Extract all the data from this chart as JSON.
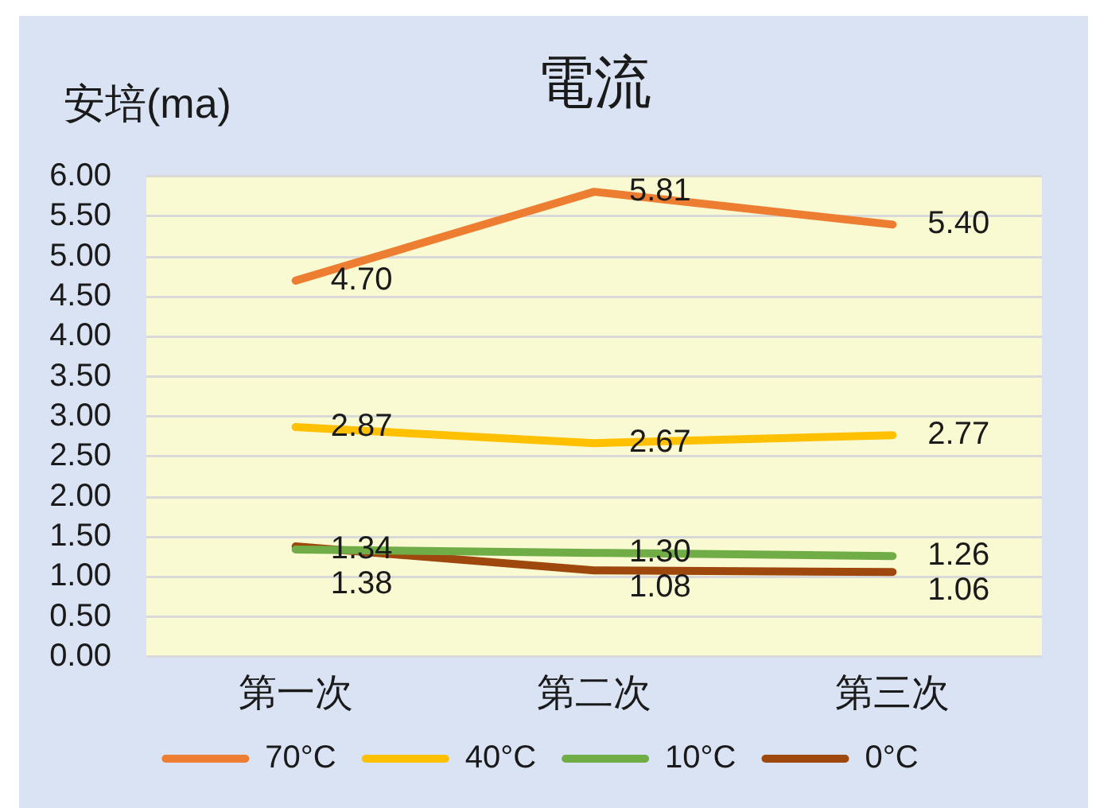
{
  "chart_data": {
    "type": "line",
    "title": "電流",
    "ylabel": "安培(ma)",
    "categories": [
      "第一次",
      "第二次",
      "第三次"
    ],
    "series": [
      {
        "name": "70°C",
        "color": "#ed7d31",
        "values": [
          4.7,
          5.81,
          5.4
        ],
        "value_labels": [
          "4.70",
          "5.81",
          "5.40"
        ]
      },
      {
        "name": "40°C",
        "color": "#ffc000",
        "values": [
          2.87,
          2.67,
          2.77
        ],
        "value_labels": [
          "2.87",
          "2.67",
          "2.77"
        ]
      },
      {
        "name": "10°C",
        "color": "#70ad47",
        "values": [
          1.34,
          1.3,
          1.26
        ],
        "value_labels": [
          "1.34",
          "1.30",
          "1.26"
        ]
      },
      {
        "name": "0°C",
        "color": "#9e480e",
        "values": [
          1.38,
          1.08,
          1.06
        ],
        "value_labels": [
          "1.38",
          "1.08",
          "1.06"
        ]
      }
    ],
    "ylim": [
      0,
      6
    ],
    "yticks": [
      {
        "value": 0,
        "label": "0.00"
      },
      {
        "value": 0.5,
        "label": "0.50"
      },
      {
        "value": 1,
        "label": "1.00"
      },
      {
        "value": 1.5,
        "label": "1.50"
      },
      {
        "value": 2,
        "label": "2.00"
      },
      {
        "value": 2.5,
        "label": "2.50"
      },
      {
        "value": 3,
        "label": "3.00"
      },
      {
        "value": 3.5,
        "label": "3.50"
      },
      {
        "value": 4,
        "label": "4.00"
      },
      {
        "value": 4.5,
        "label": "4.50"
      },
      {
        "value": 5,
        "label": "5.00"
      },
      {
        "value": 5.5,
        "label": "5.50"
      },
      {
        "value": 6,
        "label": "6.00"
      }
    ],
    "grid": "y",
    "legend": "bottom",
    "marker": "none"
  }
}
